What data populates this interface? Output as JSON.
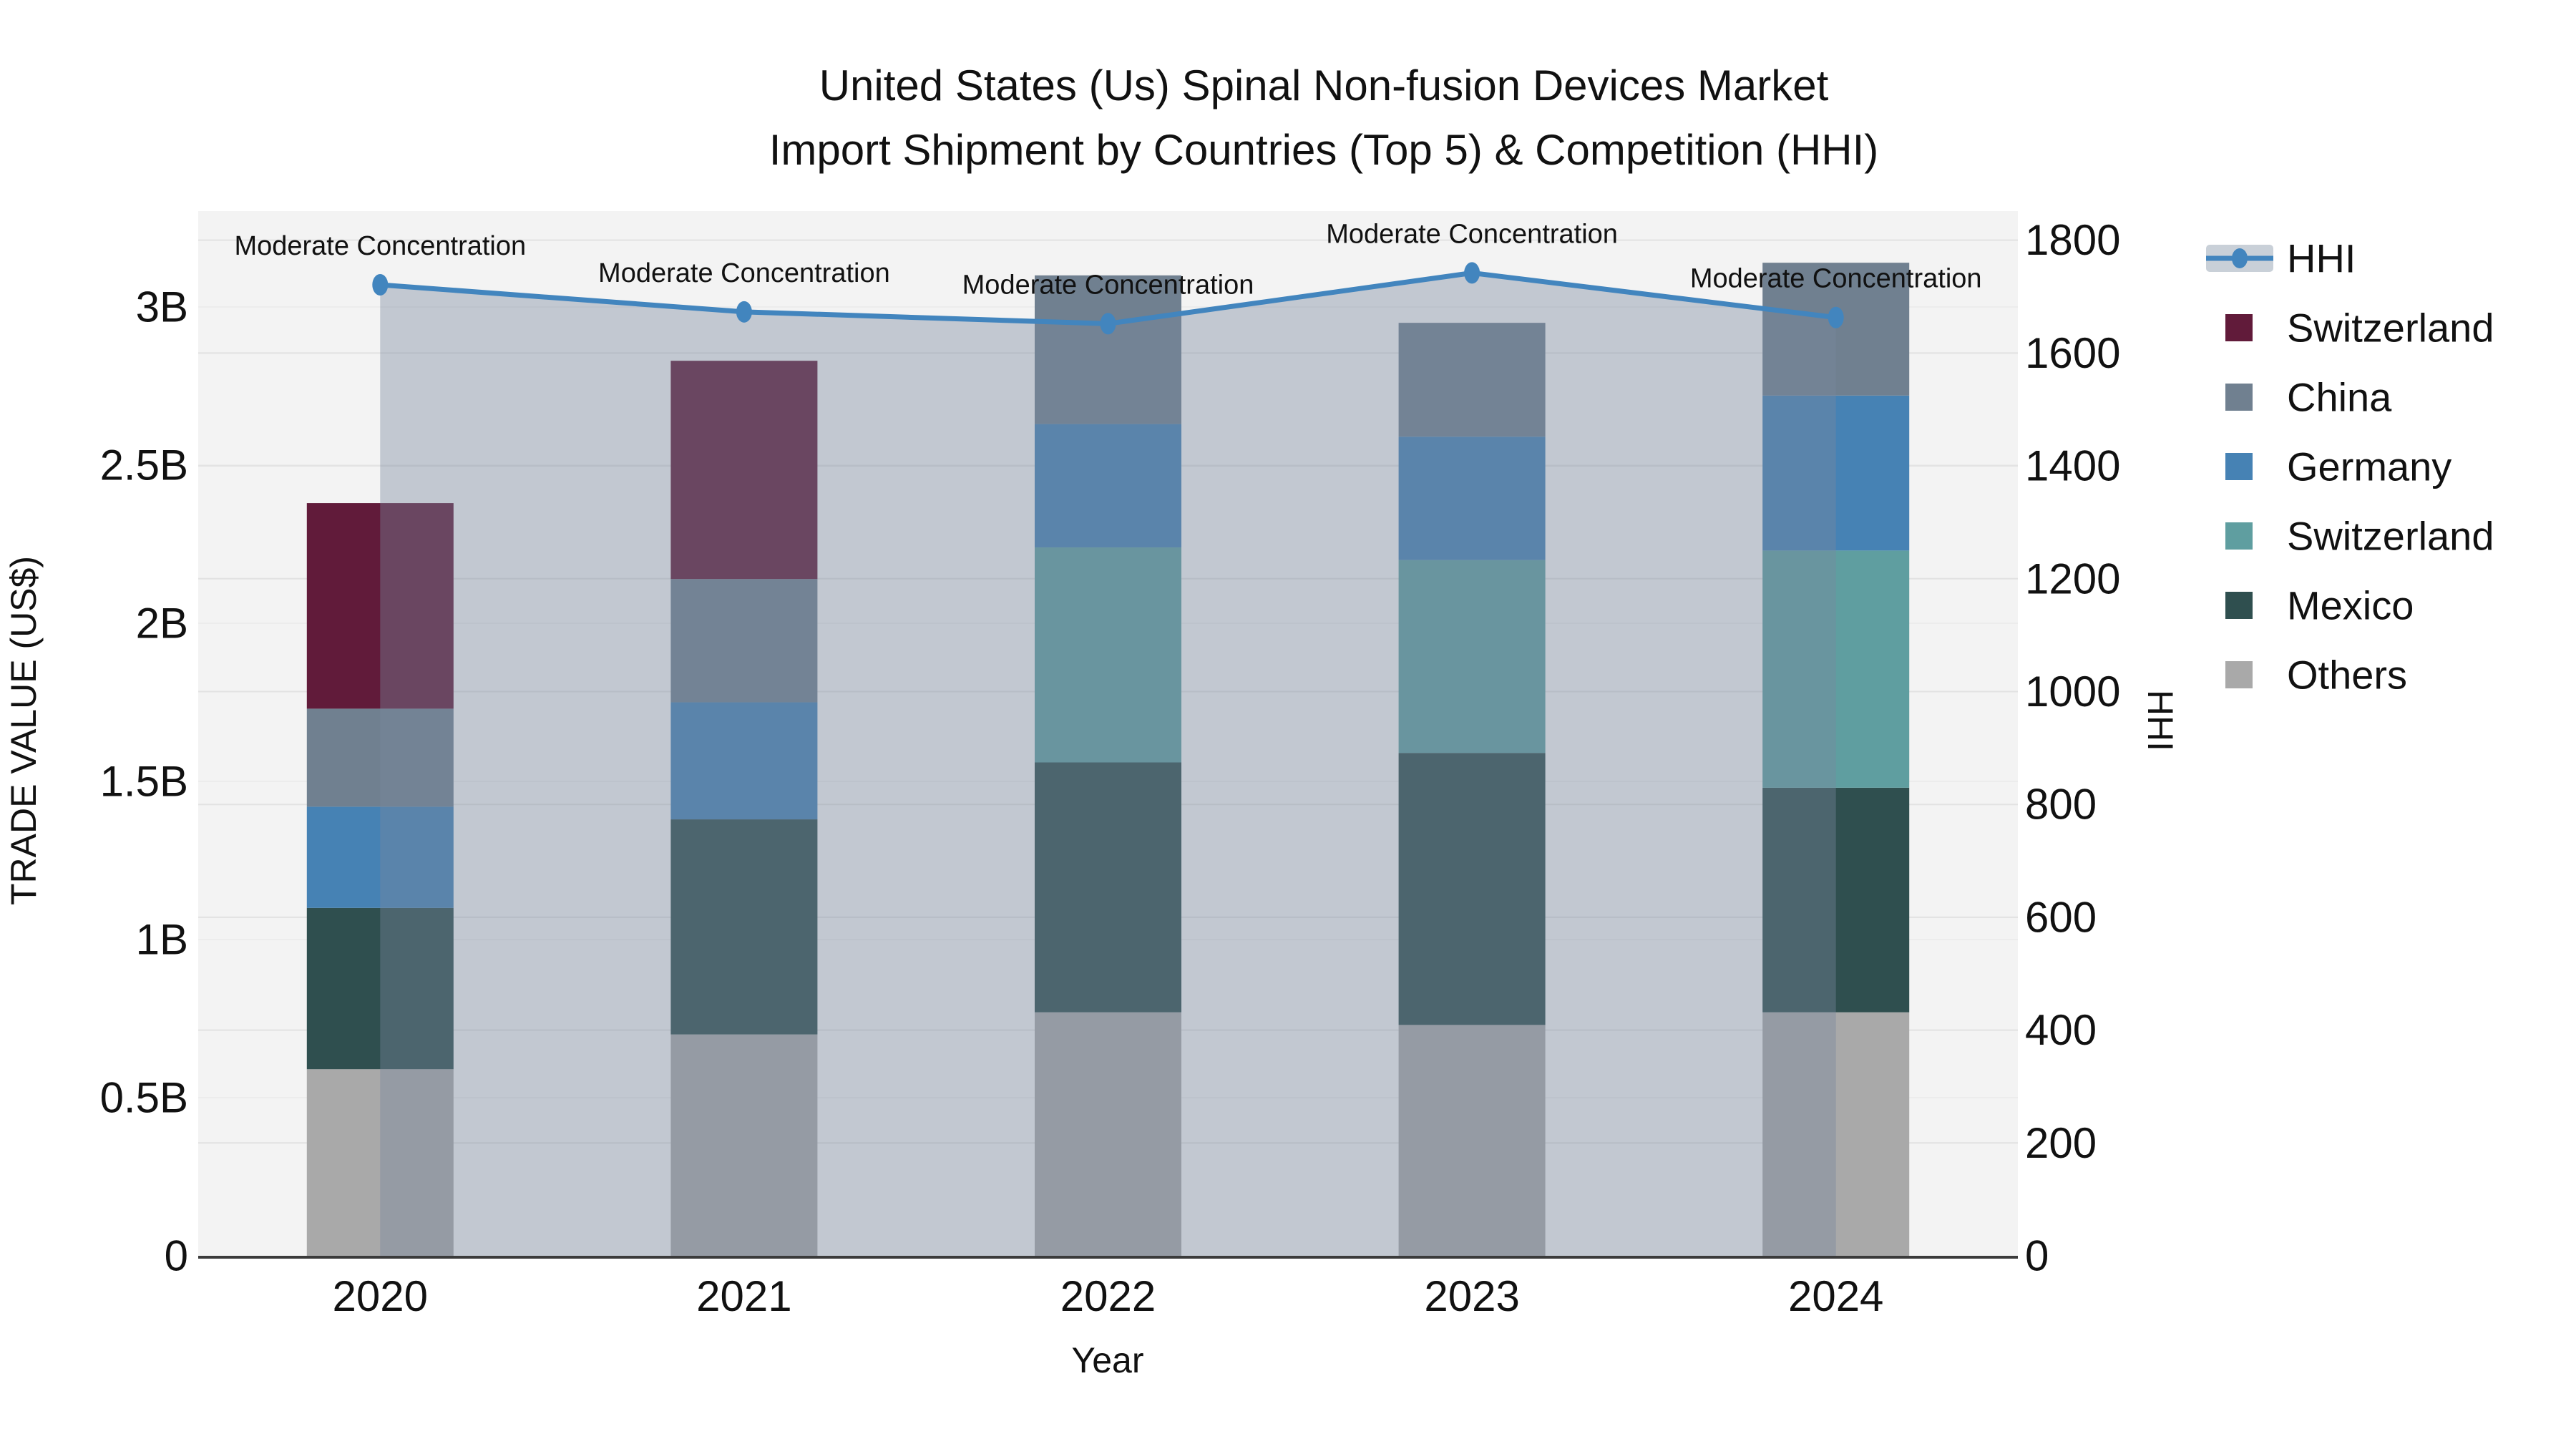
{
  "title": {
    "line1": "United States (Us) Spinal Non-fusion Devices Market",
    "line2": "Import Shipment by Countries (Top 5) & Competition (HHI)"
  },
  "chart_data": {
    "type": "bar",
    "subtype": "stacked-bars-with-line-overlay",
    "categories": [
      "2020",
      "2021",
      "2022",
      "2023",
      "2024"
    ],
    "xlabel": "Year",
    "ylabel_left": "TRADE VALUE (US$)",
    "ylabel_right": "HHI",
    "ylim_left": [
      0,
      3.3
    ],
    "ylim_right": [
      0,
      1850
    ],
    "grid": "horizontal-faint",
    "legend_position": "right",
    "series": [
      {
        "name": "Others",
        "color": "#A9A9A9",
        "values": [
          0.59,
          0.7,
          0.77,
          0.73,
          0.77
        ]
      },
      {
        "name": "Mexico",
        "color": "#2F4F4F",
        "values": [
          0.51,
          0.68,
          0.79,
          0.86,
          0.71
        ]
      },
      {
        "name": "Switzerland",
        "color": "#5F9EA0",
        "values": [
          0.0,
          0.0,
          0.68,
          0.61,
          0.75
        ]
      },
      {
        "name": "Germany",
        "color": "#4682B4",
        "values": [
          0.32,
          0.37,
          0.39,
          0.39,
          0.49
        ]
      },
      {
        "name": "China",
        "color": "#708090",
        "values": [
          0.31,
          0.39,
          0.47,
          0.36,
          0.42
        ]
      },
      {
        "name": "Switzerland",
        "color": "#611B3A",
        "values": [
          0.65,
          0.69,
          0.0,
          0.0,
          0.0
        ]
      }
    ],
    "line": {
      "name": "HHI",
      "axis": "right",
      "color": "#4285BE",
      "fill_color": "rgba(119,136,158,0.40)",
      "values": [
        1721,
        1673,
        1652,
        1742,
        1663
      ]
    },
    "annotations": [
      "Moderate Concentration",
      "Moderate Concentration",
      "Moderate Concentration",
      "Moderate Concentration",
      "Moderate Concentration"
    ],
    "left_ticks": [
      {
        "v": 0,
        "label": "0"
      },
      {
        "v": 0.5,
        "label": "0.5B"
      },
      {
        "v": 1,
        "label": "1B"
      },
      {
        "v": 1.5,
        "label": "1.5B"
      },
      {
        "v": 2,
        "label": "2B"
      },
      {
        "v": 2.5,
        "label": "2.5B"
      },
      {
        "v": 3,
        "label": "3B"
      }
    ],
    "right_ticks": [
      {
        "v": 0,
        "label": "0"
      },
      {
        "v": 200,
        "label": "200"
      },
      {
        "v": 400,
        "label": "400"
      },
      {
        "v": 600,
        "label": "600"
      },
      {
        "v": 800,
        "label": "800"
      },
      {
        "v": 1000,
        "label": "1000"
      },
      {
        "v": 1200,
        "label": "1200"
      },
      {
        "v": 1400,
        "label": "1400"
      },
      {
        "v": 1600,
        "label": "1600"
      },
      {
        "v": 1800,
        "label": "1800"
      }
    ]
  },
  "legend": {
    "items": [
      {
        "label": "HHI",
        "kind": "line",
        "color": "#4285BE",
        "band_color": "#C9D0D8"
      },
      {
        "label": "Switzerland",
        "kind": "swatch",
        "color": "#611B3A"
      },
      {
        "label": "China",
        "kind": "swatch",
        "color": "#708090"
      },
      {
        "label": "Germany",
        "kind": "swatch",
        "color": "#4682B4"
      },
      {
        "label": "Switzerland",
        "kind": "swatch",
        "color": "#5F9EA0"
      },
      {
        "label": "Mexico",
        "kind": "swatch",
        "color": "#2F4F4F"
      },
      {
        "label": "Others",
        "kind": "swatch",
        "color": "#A9A9A9"
      }
    ]
  },
  "colors": {
    "plot_background": "#F3F3F3",
    "grid_right": "#E2E2E2",
    "grid_left": "#ECECEC",
    "axis_line": "#3B3B3B"
  }
}
